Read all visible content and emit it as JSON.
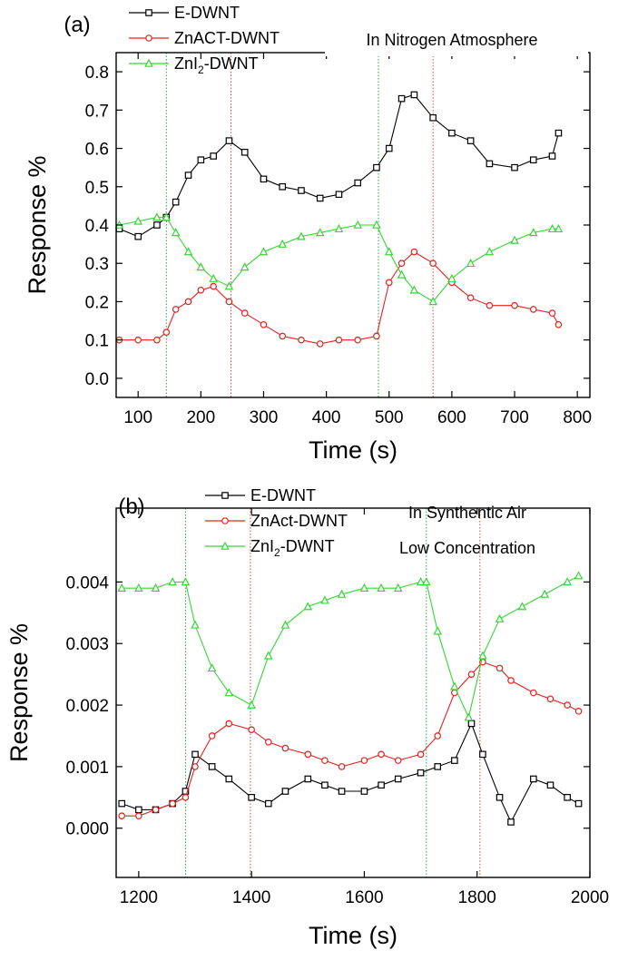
{
  "chart_data": [
    {
      "panel_label": "(a)",
      "type": "line",
      "title": "",
      "annotation": "In Nitrogen Atmosphere",
      "xlabel": "Time (s)",
      "ylabel": "Response %",
      "xlim": [
        65,
        820
      ],
      "ylim": [
        -0.05,
        0.85
      ],
      "xticks": [
        100,
        200,
        300,
        400,
        500,
        600,
        700,
        800
      ],
      "xtick_labels": [
        "100",
        "200",
        "300",
        "400",
        "500",
        "600",
        "700",
        "800"
      ],
      "yticks": [
        0.0,
        0.1,
        0.2,
        0.3,
        0.4,
        0.5,
        0.6,
        0.7,
        0.8
      ],
      "ytick_labels": [
        "0.0",
        "0.1",
        "0.2",
        "0.3",
        "0.4",
        "0.5",
        "0.6",
        "0.7",
        "0.8"
      ],
      "grid": false,
      "legend_position": "top-left",
      "vlines": [
        {
          "x": 145,
          "color": "#2e9e4f"
        },
        {
          "x": 248,
          "color": "#d94a4a"
        },
        {
          "x": 483,
          "color": "#2e9e4f"
        },
        {
          "x": 570,
          "color": "#d94a4a"
        }
      ],
      "series": [
        {
          "name": "E-DWNT",
          "color": "#000000",
          "marker": "square",
          "x": [
            70,
            100,
            130,
            145,
            160,
            180,
            200,
            220,
            245,
            270,
            300,
            330,
            360,
            390,
            420,
            450,
            480,
            500,
            520,
            540,
            570,
            600,
            630,
            660,
            700,
            730,
            760,
            770
          ],
          "y": [
            0.39,
            0.37,
            0.4,
            0.42,
            0.46,
            0.53,
            0.57,
            0.58,
            0.62,
            0.59,
            0.52,
            0.5,
            0.49,
            0.47,
            0.48,
            0.51,
            0.55,
            0.6,
            0.73,
            0.74,
            0.68,
            0.64,
            0.62,
            0.56,
            0.55,
            0.57,
            0.58,
            0.64
          ]
        },
        {
          "name": "ZnACT-DWNT",
          "color": "#e8201e",
          "marker": "circle",
          "x": [
            70,
            100,
            130,
            145,
            160,
            180,
            200,
            220,
            245,
            270,
            300,
            330,
            360,
            390,
            420,
            450,
            480,
            500,
            520,
            540,
            570,
            600,
            630,
            660,
            700,
            730,
            760,
            770
          ],
          "y": [
            0.1,
            0.1,
            0.1,
            0.12,
            0.18,
            0.2,
            0.23,
            0.24,
            0.2,
            0.17,
            0.14,
            0.11,
            0.1,
            0.09,
            0.1,
            0.1,
            0.11,
            0.25,
            0.3,
            0.33,
            0.3,
            0.25,
            0.21,
            0.19,
            0.19,
            0.18,
            0.17,
            0.14
          ]
        },
        {
          "name": "ZnI2-DWNT",
          "color": "#35d635",
          "marker": "triangle",
          "x": [
            70,
            100,
            130,
            145,
            160,
            180,
            200,
            220,
            245,
            270,
            300,
            330,
            360,
            390,
            420,
            450,
            480,
            500,
            520,
            540,
            570,
            600,
            630,
            660,
            700,
            730,
            760,
            770
          ],
          "y": [
            0.4,
            0.41,
            0.42,
            0.42,
            0.38,
            0.33,
            0.29,
            0.26,
            0.24,
            0.29,
            0.33,
            0.35,
            0.37,
            0.38,
            0.39,
            0.4,
            0.4,
            0.33,
            0.27,
            0.23,
            0.2,
            0.26,
            0.3,
            0.33,
            0.36,
            0.38,
            0.39,
            0.39
          ]
        }
      ]
    },
    {
      "panel_label": "(b)",
      "type": "line",
      "title": "",
      "annotation": "In Synthentic Air",
      "annotation2": "Low Concentration",
      "xlabel": "Time (s)",
      "ylabel": "Response %",
      "xlim": [
        1160,
        2000
      ],
      "ylim": [
        -0.0008,
        0.0052
      ],
      "xticks": [
        1200,
        1400,
        1600,
        1800,
        2000
      ],
      "xtick_labels": [
        "1200",
        "1400",
        "1600",
        "1800",
        "2000"
      ],
      "yticks": [
        0.0,
        0.001,
        0.002,
        0.003,
        0.004
      ],
      "ytick_labels": [
        "0.000",
        "0.001",
        "0.002",
        "0.003",
        "0.004"
      ],
      "grid": false,
      "legend_position": "top-left",
      "vlines": [
        {
          "x": 1283,
          "color": "#2e9e4f"
        },
        {
          "x": 1398,
          "color": "#d94a4a"
        },
        {
          "x": 1710,
          "color": "#2e9e4f"
        },
        {
          "x": 1805,
          "color": "#d94a4a"
        }
      ],
      "series": [
        {
          "name": "E-DWNT",
          "color": "#000000",
          "marker": "square",
          "x": [
            1170,
            1200,
            1230,
            1260,
            1283,
            1300,
            1330,
            1360,
            1400,
            1430,
            1460,
            1500,
            1530,
            1560,
            1600,
            1630,
            1660,
            1700,
            1730,
            1760,
            1790,
            1810,
            1840,
            1860,
            1900,
            1930,
            1960,
            1980
          ],
          "y": [
            0.0004,
            0.0003,
            0.0003,
            0.0004,
            0.0006,
            0.0012,
            0.001,
            0.0008,
            0.0005,
            0.0004,
            0.0006,
            0.0008,
            0.0007,
            0.0006,
            0.0006,
            0.0007,
            0.0008,
            0.0009,
            0.001,
            0.0011,
            0.0017,
            0.0012,
            0.0005,
            0.0001,
            0.0008,
            0.0007,
            0.0005,
            0.0004
          ]
        },
        {
          "name": "ZnAct-DWNT",
          "color": "#e8201e",
          "marker": "circle",
          "x": [
            1170,
            1200,
            1230,
            1260,
            1283,
            1300,
            1330,
            1360,
            1400,
            1430,
            1460,
            1500,
            1530,
            1560,
            1600,
            1630,
            1660,
            1700,
            1730,
            1760,
            1790,
            1810,
            1840,
            1860,
            1900,
            1930,
            1960,
            1980
          ],
          "y": [
            0.0002,
            0.0002,
            0.0003,
            0.0004,
            0.0005,
            0.001,
            0.0015,
            0.0017,
            0.0016,
            0.0014,
            0.0013,
            0.0012,
            0.0011,
            0.001,
            0.0011,
            0.0012,
            0.0011,
            0.0012,
            0.0015,
            0.0022,
            0.0025,
            0.0027,
            0.0026,
            0.0024,
            0.0022,
            0.0021,
            0.002,
            0.0019
          ]
        },
        {
          "name": "ZnI2-DWNT",
          "color": "#35d635",
          "marker": "triangle",
          "x": [
            1170,
            1200,
            1230,
            1260,
            1283,
            1300,
            1330,
            1360,
            1400,
            1430,
            1460,
            1500,
            1530,
            1560,
            1600,
            1630,
            1660,
            1700,
            1710,
            1730,
            1760,
            1785,
            1810,
            1840,
            1880,
            1920,
            1960,
            1980
          ],
          "y": [
            0.0039,
            0.0039,
            0.0039,
            0.004,
            0.004,
            0.0033,
            0.0026,
            0.0022,
            0.002,
            0.0028,
            0.0033,
            0.0036,
            0.0037,
            0.0038,
            0.0039,
            0.0039,
            0.0039,
            0.004,
            0.004,
            0.0032,
            0.0023,
            0.0018,
            0.0028,
            0.0034,
            0.0036,
            0.0038,
            0.004,
            0.0041
          ]
        }
      ]
    }
  ]
}
